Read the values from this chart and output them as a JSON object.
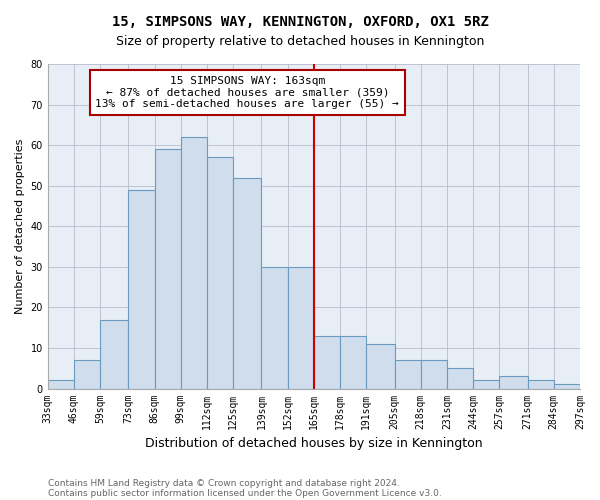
{
  "title": "15, SIMPSONS WAY, KENNINGTON, OXFORD, OX1 5RZ",
  "subtitle": "Size of property relative to detached houses in Kennington",
  "xlabel": "Distribution of detached houses by size in Kennington",
  "ylabel": "Number of detached properties",
  "bin_edges": [
    33,
    46,
    59,
    73,
    86,
    99,
    112,
    125,
    139,
    152,
    165,
    178,
    191,
    205,
    218,
    231,
    244,
    257,
    271,
    284,
    297
  ],
  "bar_heights": [
    2,
    7,
    17,
    49,
    59,
    62,
    57,
    52,
    30,
    30,
    13,
    13,
    11,
    7,
    7,
    5,
    2,
    3,
    2,
    1
  ],
  "bar_color": "#cfdded",
  "bar_edge_color": "#6a9bbf",
  "vline_x": 165,
  "vline_color": "#cc0000",
  "ylim": [
    0,
    80
  ],
  "yticks": [
    0,
    10,
    20,
    30,
    40,
    50,
    60,
    70,
    80
  ],
  "annotation_title": "15 SIMPSONS WAY: 163sqm",
  "annotation_line1": "← 87% of detached houses are smaller (359)",
  "annotation_line2": "13% of semi-detached houses are larger (55) →",
  "annotation_box_color": "#ffffff",
  "annotation_box_edge": "#aa0000",
  "footnote1": "Contains HM Land Registry data © Crown copyright and database right 2024.",
  "footnote2": "Contains public sector information licensed under the Open Government Licence v3.0.",
  "bg_color": "#e8eef5",
  "title_fontsize": 10,
  "subtitle_fontsize": 9,
  "xlabel_fontsize": 9,
  "ylabel_fontsize": 8,
  "tick_fontsize": 7,
  "annotation_fontsize": 8,
  "footnote_fontsize": 6.5
}
